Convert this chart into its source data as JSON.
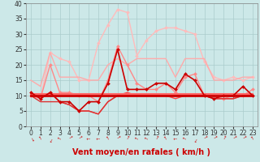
{
  "xlabel": "Vent moyen/en rafales ( km/h )",
  "background_color": "#cce8e8",
  "grid_color": "#aacccc",
  "xlim": [
    -0.5,
    23.5
  ],
  "ylim": [
    0,
    40
  ],
  "yticks": [
    0,
    5,
    10,
    15,
    20,
    25,
    30,
    35,
    40
  ],
  "xticks": [
    0,
    1,
    2,
    3,
    4,
    5,
    6,
    7,
    8,
    9,
    10,
    11,
    12,
    13,
    14,
    15,
    16,
    17,
    18,
    19,
    20,
    21,
    22,
    23
  ],
  "series": [
    {
      "data": [
        10,
        9,
        24,
        22,
        21,
        15,
        15,
        27,
        33,
        38,
        37,
        23,
        28,
        31,
        32,
        32,
        31,
        30,
        21,
        16,
        15,
        16,
        15,
        16
      ],
      "color": "#ffbbbb",
      "linewidth": 1.0,
      "marker": "D",
      "markersize": 2.0,
      "zorder": 2
    },
    {
      "data": [
        15,
        13,
        24,
        16,
        16,
        16,
        15,
        15,
        20,
        22,
        20,
        22,
        22,
        22,
        22,
        16,
        22,
        22,
        22,
        15,
        15,
        15,
        16,
        16
      ],
      "color": "#ffaaaa",
      "linewidth": 1.0,
      "marker": null,
      "zorder": 2
    },
    {
      "data": [
        10,
        9,
        20,
        11,
        11,
        10,
        10,
        8,
        15,
        26,
        20,
        14,
        12,
        12,
        14,
        11,
        16,
        17,
        10,
        10,
        9,
        10,
        10,
        12
      ],
      "color": "#ff8888",
      "linewidth": 1.0,
      "marker": "D",
      "markersize": 2.0,
      "zorder": 3
    },
    {
      "data": [
        10.5,
        10.5,
        10.5,
        10.5,
        10.5,
        10.5,
        10.5,
        10.5,
        10.5,
        10.5,
        10.5,
        10.5,
        10.5,
        10.5,
        10.5,
        10.5,
        10.5,
        10.5,
        10.5,
        10.5,
        10.5,
        10.5,
        10.5,
        10.5
      ],
      "color": "#ff6666",
      "linewidth": 1.5,
      "marker": null,
      "zorder": 4
    },
    {
      "data": [
        10,
        8,
        8,
        8,
        7,
        5,
        5,
        4,
        8,
        10,
        10,
        10,
        10,
        10,
        10,
        10,
        10,
        10,
        10,
        9,
        9,
        9,
        10,
        10
      ],
      "color": "#dd3333",
      "linewidth": 1.0,
      "marker": null,
      "zorder": 4
    },
    {
      "data": [
        10,
        10,
        10,
        10,
        10,
        10,
        10,
        10,
        10,
        10,
        10,
        10,
        10,
        10,
        10,
        10,
        10,
        10,
        10,
        10,
        10,
        10,
        10,
        10
      ],
      "color": "#cc0000",
      "linewidth": 2.0,
      "marker": null,
      "zorder": 5
    },
    {
      "data": [
        11,
        9,
        11,
        8,
        8,
        5,
        8,
        8,
        14,
        25,
        12,
        12,
        12,
        14,
        14,
        12,
        17,
        15,
        10,
        9,
        10,
        10,
        13,
        10
      ],
      "color": "#cc0000",
      "linewidth": 1.2,
      "marker": "D",
      "markersize": 2.0,
      "zorder": 5
    },
    {
      "data": [
        11,
        9,
        11,
        8,
        7,
        5,
        5,
        4,
        8,
        10,
        11,
        10,
        10,
        10,
        10,
        9,
        10,
        10,
        10,
        9,
        9,
        9,
        10,
        10
      ],
      "color": "#ff4444",
      "linewidth": 1.0,
      "marker": null,
      "zorder": 3
    }
  ],
  "wind_arrow_color": "#cc0000",
  "xlabel_color": "#cc0000",
  "xlabel_fontsize": 7,
  "tick_fontsize": 5.5,
  "figwidth": 3.2,
  "figheight": 2.0,
  "dpi": 100
}
